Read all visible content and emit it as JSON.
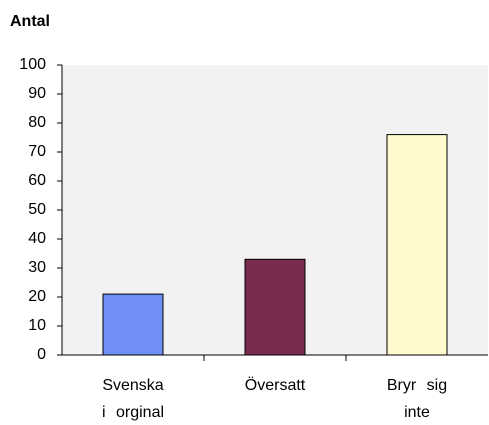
{
  "chart_data": {
    "type": "bar",
    "title": "Antal",
    "categories": [
      "Svenska i orginal",
      "Översatt",
      "Bryr sig inte"
    ],
    "values": [
      21,
      33,
      76
    ],
    "colors": [
      "#6f8ff7",
      "#7b2b4e",
      "#fffacd"
    ],
    "ylim": [
      0,
      100
    ],
    "yticks": [
      0,
      10,
      20,
      30,
      40,
      50,
      60,
      70,
      80,
      90,
      100
    ],
    "grid": false
  }
}
